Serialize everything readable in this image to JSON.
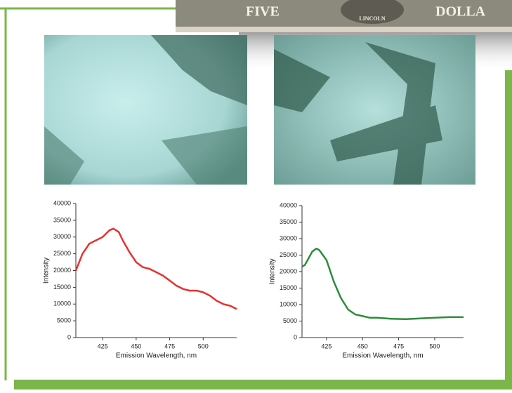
{
  "banknote_texts": [
    "FIVE",
    "LINCOLN",
    "DOLLA"
  ],
  "chart_data": [
    {
      "type": "line",
      "xlabel": "Emission Wavelength, nm",
      "ylabel": "Intensity",
      "xlim": [
        405,
        525
      ],
      "xticks": [
        425,
        450,
        475,
        500
      ],
      "ylim": [
        0,
        40000
      ],
      "yticks": [
        0,
        5000,
        10000,
        15000,
        20000,
        25000,
        30000,
        35000,
        40000
      ],
      "series": [
        {
          "color": "#e8312c",
          "x": [
            405,
            410,
            415,
            420,
            425,
            430,
            433,
            437,
            440,
            445,
            450,
            455,
            460,
            465,
            470,
            475,
            480,
            485,
            490,
            495,
            500,
            505,
            510,
            515,
            520,
            525
          ],
          "values": [
            20000,
            25000,
            28000,
            29000,
            30000,
            32000,
            32500,
            31500,
            29000,
            25500,
            22500,
            21000,
            20500,
            19500,
            18500,
            17000,
            15500,
            14500,
            14000,
            14000,
            13500,
            12500,
            11000,
            10000,
            9500,
            8500
          ]
        }
      ]
    },
    {
      "type": "line",
      "xlabel": "Emission Wavelength, nm",
      "ylabel": "Intensity",
      "xlim": [
        408,
        520
      ],
      "xticks": [
        425,
        450,
        475,
        500
      ],
      "ylim": [
        0,
        40000
      ],
      "yticks": [
        0,
        5000,
        10000,
        15000,
        20000,
        25000,
        30000,
        35000,
        40000
      ],
      "series": [
        {
          "color": "#2e8b3a",
          "x": [
            408,
            410,
            415,
            418,
            420,
            425,
            430,
            435,
            440,
            445,
            450,
            455,
            460,
            470,
            480,
            490,
            500,
            510,
            520
          ],
          "values": [
            21500,
            22000,
            26000,
            27000,
            26500,
            23500,
            17000,
            12000,
            8500,
            7000,
            6500,
            6000,
            6000,
            5700,
            5600,
            5800,
            6000,
            6200,
            6200
          ]
        }
      ]
    }
  ]
}
